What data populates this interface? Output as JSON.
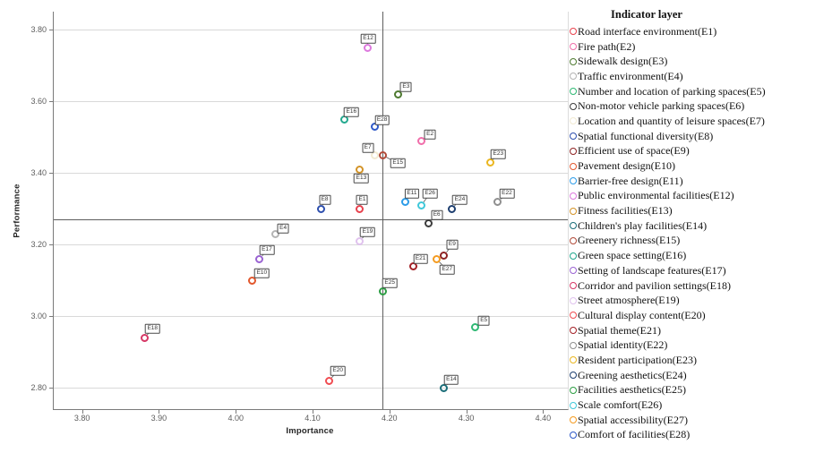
{
  "chart_data": {
    "type": "scatter",
    "title": "",
    "xlabel": "Importance",
    "ylabel": "Performance",
    "legend_title": "Indicator layer",
    "legend_position": "right",
    "grid": "horizontal-only",
    "xlim": [
      3.762,
      4.431
    ],
    "ylim": [
      2.741,
      3.851
    ],
    "x_ticks": [
      3.8,
      3.9,
      4.0,
      4.1,
      4.2,
      4.3,
      4.4
    ],
    "y_ticks": [
      2.8,
      3.0,
      3.2,
      3.4,
      3.6,
      3.8
    ],
    "reference_line_x": 4.19,
    "reference_line_y": 3.27,
    "points": [
      {
        "id": "E1",
        "name": "Road interface environment(E1)",
        "x": 4.16,
        "y": 3.3,
        "color": "#e8414d",
        "label_offset": [
          3,
          -10
        ]
      },
      {
        "id": "E2",
        "name": "Fire path(E2)",
        "x": 4.24,
        "y": 3.49,
        "color": "#f06eaa",
        "label_offset": [
          10,
          -7
        ]
      },
      {
        "id": "E3",
        "name": "Sidewalk design(E3)",
        "x": 4.21,
        "y": 3.62,
        "color": "#4e7a30",
        "label_offset": [
          9,
          -8
        ]
      },
      {
        "id": "E4",
        "name": "Traffic environment(E4)",
        "x": 4.05,
        "y": 3.23,
        "color": "#b4b4b4",
        "label_offset": [
          9,
          -6
        ]
      },
      {
        "id": "E5",
        "name": "Number and location of parking spaces(E5)",
        "x": 4.31,
        "y": 2.97,
        "color": "#2eb873",
        "label_offset": [
          10,
          -7
        ]
      },
      {
        "id": "E6",
        "name": "Non-motor vehicle parking spaces(E6)",
        "x": 4.25,
        "y": 3.26,
        "color": "#3d3d3d",
        "label_offset": [
          9,
          -9
        ]
      },
      {
        "id": "E7",
        "name": "Location and quantity of leisure spaces(E7)",
        "x": 4.18,
        "y": 3.45,
        "color": "#f1ead2",
        "label_offset": [
          -8,
          -8
        ]
      },
      {
        "id": "E8",
        "name": "Spatial functional diversity(E8)",
        "x": 4.11,
        "y": 3.3,
        "color": "#2e4fae",
        "label_offset": [
          4,
          -10
        ]
      },
      {
        "id": "E9",
        "name": "Efficient use of space(E9)",
        "x": 4.27,
        "y": 3.17,
        "color": "#8e2323",
        "label_offset": [
          9,
          -12
        ]
      },
      {
        "id": "E10",
        "name": "Pavement design(E10)",
        "x": 4.02,
        "y": 3.1,
        "color": "#e2572d",
        "label_offset": [
          11,
          -8
        ]
      },
      {
        "id": "E11",
        "name": "Barrier-free design(E11)",
        "x": 4.22,
        "y": 3.32,
        "color": "#2d9ce8",
        "label_offset": [
          7,
          -9
        ]
      },
      {
        "id": "E12",
        "name": "Public environmental facilities(E12)",
        "x": 4.17,
        "y": 3.75,
        "color": "#dd79de",
        "label_offset": [
          1,
          -10
        ]
      },
      {
        "id": "E13",
        "name": "Fitness facilities(E13)",
        "x": 4.16,
        "y": 3.41,
        "color": "#d39327",
        "label_offset": [
          2,
          10
        ]
      },
      {
        "id": "E14",
        "name": "Children's play facilities(E14)",
        "x": 4.27,
        "y": 2.8,
        "color": "#1b6e79",
        "label_offset": [
          8,
          -9
        ]
      },
      {
        "id": "E15",
        "name": "Greenery richness(E15)",
        "x": 4.19,
        "y": 3.45,
        "color": "#b04a39",
        "label_offset": [
          17,
          9
        ]
      },
      {
        "id": "E16",
        "name": "Green space setting(E16)",
        "x": 4.14,
        "y": 3.55,
        "color": "#21a88e",
        "label_offset": [
          8,
          -8
        ]
      },
      {
        "id": "E17",
        "name": "Setting of landscape features(E17)",
        "x": 4.03,
        "y": 3.16,
        "color": "#9a63d2",
        "label_offset": [
          8,
          -10
        ]
      },
      {
        "id": "E18",
        "name": "Corridor and pavilion settings(E18)",
        "x": 3.88,
        "y": 2.94,
        "color": "#d63866",
        "label_offset": [
          9,
          -10
        ]
      },
      {
        "id": "E19",
        "name": "Street atmosphere(E19)",
        "x": 4.16,
        "y": 3.21,
        "color": "#e0c2ee",
        "label_offset": [
          9,
          -10
        ]
      },
      {
        "id": "E20",
        "name": "Cultural display content(E20)",
        "x": 4.12,
        "y": 2.82,
        "color": "#f04d52",
        "label_offset": [
          10,
          -11
        ]
      },
      {
        "id": "E21",
        "name": "Spatial theme(E21)",
        "x": 4.23,
        "y": 3.14,
        "color": "#a32026",
        "label_offset": [
          8,
          -8
        ]
      },
      {
        "id": "E22",
        "name": "Spatial identity(E22)",
        "x": 4.34,
        "y": 3.32,
        "color": "#8f8f8f",
        "label_offset": [
          10,
          -9
        ]
      },
      {
        "id": "E23",
        "name": "Resident participation(E23)",
        "x": 4.33,
        "y": 3.43,
        "color": "#eab620",
        "label_offset": [
          9,
          -9
        ]
      },
      {
        "id": "E24",
        "name": "Greening aesthetics(E24)",
        "x": 4.28,
        "y": 3.3,
        "color": "#1e3f70",
        "label_offset": [
          9,
          -10
        ]
      },
      {
        "id": "E25",
        "name": "Facilities aesthetics(E25)",
        "x": 4.19,
        "y": 3.07,
        "color": "#2d9e44",
        "label_offset": [
          8,
          -9
        ]
      },
      {
        "id": "E26",
        "name": "Scale comfort(E26)",
        "x": 4.24,
        "y": 3.31,
        "color": "#3fc8da",
        "label_offset": [
          10,
          -13
        ]
      },
      {
        "id": "E27",
        "name": "Spatial accessibility(E27)",
        "x": 4.26,
        "y": 3.16,
        "color": "#f49b20",
        "label_offset": [
          12,
          12
        ]
      },
      {
        "id": "E28",
        "name": "Comfort of facilities(E28)",
        "x": 4.18,
        "y": 3.53,
        "color": "#2e59c8",
        "label_offset": [
          8,
          -7
        ]
      }
    ]
  }
}
